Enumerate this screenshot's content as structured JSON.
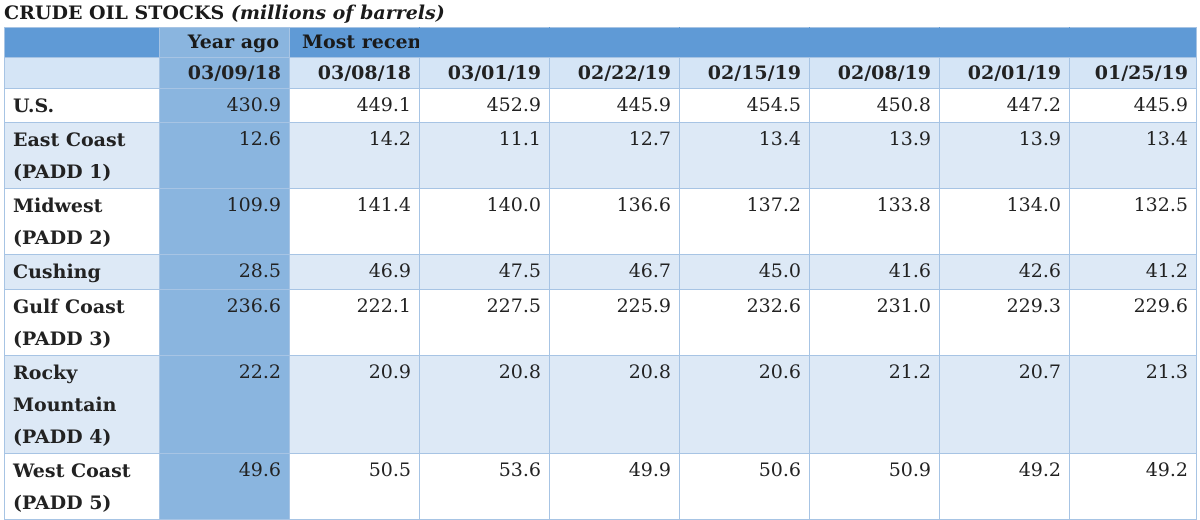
{
  "title": {
    "main": "CRUDE OIL STOCKS",
    "sub": "(millions of barrels)"
  },
  "header": {
    "year_ago_label": "Year ago",
    "most_recent_label": "Most recent",
    "dates": [
      "03/09/18",
      "03/08/18",
      "03/01/19",
      "02/22/19",
      "02/15/19",
      "02/08/19",
      "02/01/19",
      "01/25/19"
    ]
  },
  "rows": [
    {
      "label": "U.S.",
      "values": [
        "430.9",
        "449.1",
        "452.9",
        "445.9",
        "454.5",
        "450.8",
        "447.2",
        "445.9"
      ]
    },
    {
      "label": "East Coast (PADD 1)",
      "values": [
        "12.6",
        "14.2",
        "11.1",
        "12.7",
        "13.4",
        "13.9",
        "13.9",
        "13.4"
      ]
    },
    {
      "label": "Midwest (PADD 2)",
      "values": [
        "109.9",
        "141.4",
        "140.0",
        "136.6",
        "137.2",
        "133.8",
        "134.0",
        "132.5"
      ]
    },
    {
      "label": "Cushing",
      "values": [
        "28.5",
        "46.9",
        "47.5",
        "46.7",
        "45.0",
        "41.6",
        "42.6",
        "41.2"
      ]
    },
    {
      "label": "Gulf Coast (PADD 3)",
      "values": [
        "236.6",
        "222.1",
        "227.5",
        "225.9",
        "232.6",
        "231.0",
        "229.3",
        "229.6"
      ]
    },
    {
      "label": "Rocky Mountain (PADD 4)",
      "values": [
        "22.2",
        "20.9",
        "20.8",
        "20.8",
        "20.6",
        "21.2",
        "20.7",
        "21.3"
      ]
    },
    {
      "label": "West Coast (PADD 5)",
      "values": [
        "49.6",
        "50.5",
        "53.6",
        "49.9",
        "50.6",
        "50.9",
        "49.2",
        "49.2"
      ]
    }
  ],
  "colors": {
    "header_blue": "#5f9ad6",
    "year_ago_column": "#8ab5df",
    "alt_row": "#dde9f6",
    "grid": "#a7c4e4"
  },
  "chart_data": {
    "type": "table",
    "title": "CRUDE OIL STOCKS (millions of barrels)",
    "column_groups": [
      {
        "name": "Year ago",
        "columns": [
          "03/09/18"
        ]
      },
      {
        "name": "Most recent",
        "columns": [
          "03/08/18",
          "03/01/19",
          "02/22/19",
          "02/15/19",
          "02/08/19",
          "02/01/19",
          "01/25/19"
        ]
      }
    ],
    "columns": [
      "03/09/18",
      "03/08/18",
      "03/01/19",
      "02/22/19",
      "02/15/19",
      "02/08/19",
      "02/01/19",
      "01/25/19"
    ],
    "rows": [
      {
        "name": "U.S.",
        "values": [
          430.9,
          449.1,
          452.9,
          445.9,
          454.5,
          450.8,
          447.2,
          445.9
        ]
      },
      {
        "name": "East Coast (PADD 1)",
        "values": [
          12.6,
          14.2,
          11.1,
          12.7,
          13.4,
          13.9,
          13.9,
          13.4
        ]
      },
      {
        "name": "Midwest (PADD 2)",
        "values": [
          109.9,
          141.4,
          140.0,
          136.6,
          137.2,
          133.8,
          134.0,
          132.5
        ]
      },
      {
        "name": "Cushing",
        "values": [
          28.5,
          46.9,
          47.5,
          46.7,
          45.0,
          41.6,
          42.6,
          41.2
        ]
      },
      {
        "name": "Gulf Coast (PADD 3)",
        "values": [
          236.6,
          222.1,
          227.5,
          225.9,
          232.6,
          231.0,
          229.3,
          229.6
        ]
      },
      {
        "name": "Rocky Mountain (PADD 4)",
        "values": [
          22.2,
          20.9,
          20.8,
          20.8,
          20.6,
          21.2,
          20.7,
          21.3
        ]
      },
      {
        "name": "West Coast (PADD 5)",
        "values": [
          49.6,
          50.5,
          53.6,
          49.9,
          50.6,
          50.9,
          49.2,
          49.2
        ]
      }
    ]
  }
}
